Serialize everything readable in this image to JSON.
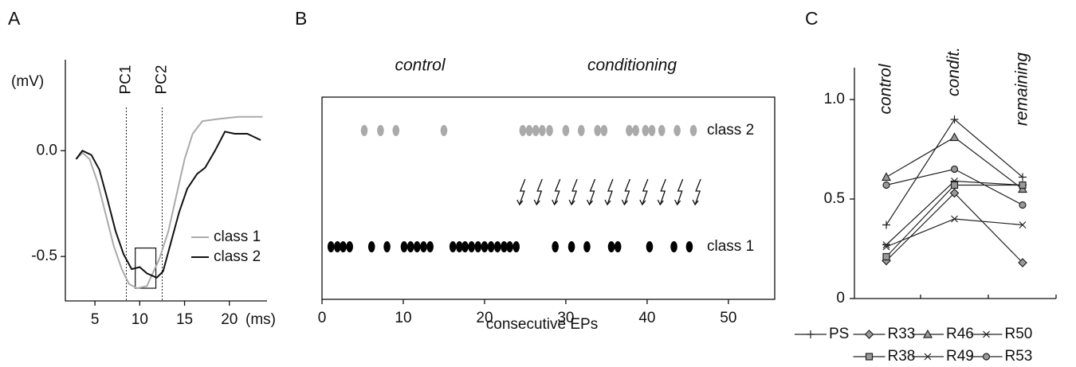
{
  "chart_data": [
    {
      "type": "line",
      "panel": "A",
      "ylabel": "(mV)",
      "xlabel": "(ms)",
      "xlim": [
        1.7,
        24.2
      ],
      "ylim": [
        -0.71,
        0.43
      ],
      "xticks": [
        5,
        10,
        15,
        20
      ],
      "yticks": [
        {
          "value": 0,
          "label": "0.0"
        },
        {
          "value": -0.5,
          "label": "-0.5"
        }
      ],
      "annotations": [
        {
          "text": "PC1",
          "x": 8.5
        },
        {
          "text": "PC2",
          "x": 12.5
        }
      ],
      "box": {
        "x": [
          9.5,
          11.8
        ],
        "y": [
          -0.65,
          -0.46
        ]
      },
      "series": [
        {
          "name": "class 1",
          "color": "#aaaaaa",
          "x": [
            2.9,
            3.6,
            4.4,
            5.3,
            6.2,
            7.1,
            8.0,
            8.8,
            9.7,
            10.8,
            12.2,
            13.2,
            14.1,
            15.0,
            15.9,
            17.0,
            18.8,
            21.0,
            22.8,
            23.7
          ],
          "values": [
            -0.04,
            -0.01,
            -0.04,
            -0.15,
            -0.3,
            -0.45,
            -0.56,
            -0.63,
            -0.65,
            -0.64,
            -0.51,
            -0.38,
            -0.21,
            -0.04,
            0.08,
            0.14,
            0.15,
            0.16,
            0.16,
            0.16
          ]
        },
        {
          "name": "class 2",
          "color": "#111111",
          "x": [
            2.9,
            3.6,
            4.6,
            5.5,
            6.4,
            7.3,
            8.2,
            9.1,
            10.0,
            10.8,
            11.9,
            12.6,
            13.5,
            14.4,
            15.3,
            16.4,
            17.3,
            18.4,
            19.5,
            20.6,
            22.0,
            23.5
          ],
          "values": [
            -0.04,
            0,
            -0.02,
            -0.09,
            -0.23,
            -0.38,
            -0.49,
            -0.56,
            -0.55,
            -0.58,
            -0.6,
            -0.57,
            -0.43,
            -0.29,
            -0.18,
            -0.11,
            -0.08,
            0,
            0.09,
            0.08,
            0.08,
            0.05
          ]
        }
      ]
    },
    {
      "type": "raster",
      "panel": "B",
      "xlabel": "consecutive EPs",
      "annotations": [
        "control",
        "conditioning"
      ],
      "xlim": [
        0,
        55.7
      ],
      "xticks": [
        0,
        10,
        20,
        30,
        40,
        50
      ],
      "series": [
        {
          "name": "class 2",
          "color": "#aaaaaa",
          "x": [
            5.2,
            7.2,
            9.1,
            15.0,
            24.7,
            25.5,
            26.3,
            27.1,
            28.0,
            30.0,
            31.9,
            33.9,
            34.7,
            37.8,
            38.6,
            39.8,
            40.6,
            41.8,
            43.7,
            45.7
          ]
        },
        {
          "name": "class 1",
          "color": "#000000",
          "x": [
            1.1,
            1.9,
            2.6,
            3.4,
            6.1,
            8.0,
            10.1,
            10.9,
            11.7,
            12.5,
            13.3,
            16.1,
            16.9,
            17.6,
            18.4,
            19.2,
            20.0,
            20.8,
            21.6,
            22.4,
            23.1,
            23.9,
            28.7,
            30.7,
            32.6,
            35.6,
            36.4,
            40.3,
            43.3,
            45.2
          ]
        }
      ],
      "stimuli": [
        24.6,
        26.7,
        28.9,
        31.0,
        33.2,
        35.4,
        37.5,
        39.7,
        41.9,
        44.0,
        46.2
      ]
    },
    {
      "type": "line",
      "panel": "C",
      "categories": [
        "control",
        "condit.",
        "remaining"
      ],
      "ylim": [
        0,
        1.16
      ],
      "yticks": [
        0,
        0.5,
        {
          "value": 1,
          "label": "1.0"
        }
      ],
      "series": [
        {
          "name": "PS",
          "marker": "plus",
          "color": "#222222",
          "values": [
            0.37,
            0.9,
            0.61
          ]
        },
        {
          "name": "R33",
          "marker": "diamond",
          "color": "#222222",
          "values": [
            0.19,
            0.53,
            0.18
          ]
        },
        {
          "name": "R46",
          "marker": "triangle",
          "color": "#222222",
          "values": [
            0.61,
            0.81,
            0.55
          ]
        },
        {
          "name": "R50",
          "marker": "star",
          "color": "#222222",
          "values": [
            0.27,
            0.59,
            0.57
          ]
        },
        {
          "name": "R38",
          "marker": "square",
          "color": "#222222",
          "values": [
            0.21,
            0.57,
            0.57
          ]
        },
        {
          "name": "R49",
          "marker": "cross",
          "color": "#222222",
          "values": [
            0.26,
            0.4,
            0.37
          ]
        },
        {
          "name": "R53",
          "marker": "circle",
          "color": "#222222",
          "values": [
            0.57,
            0.65,
            0.47
          ]
        }
      ]
    }
  ]
}
